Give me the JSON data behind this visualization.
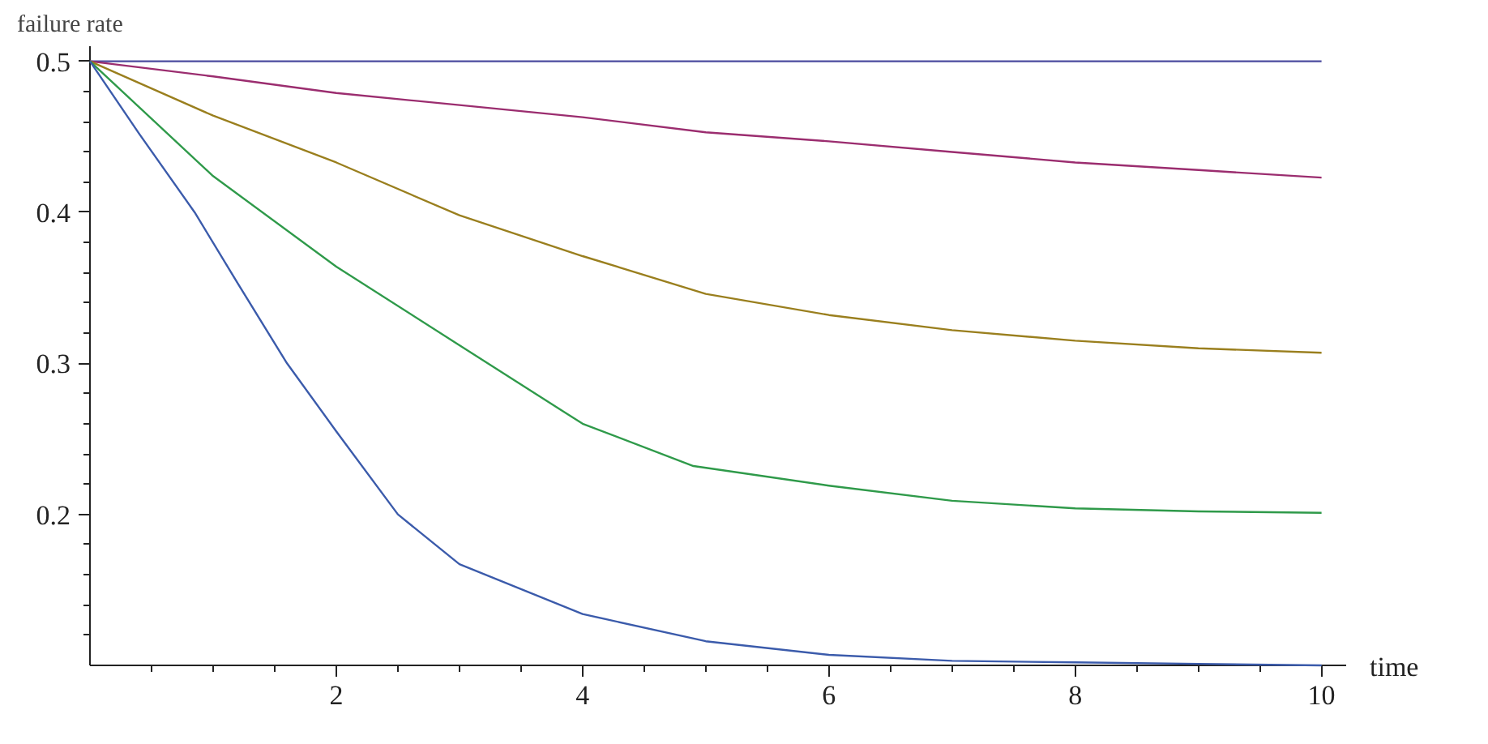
{
  "chart_data": {
    "type": "line",
    "xlabel": "time",
    "ylabel": "failure rate",
    "xlim": [
      0,
      10.2
    ],
    "ylim": [
      0.1,
      0.51
    ],
    "xticks": [
      {
        "value": 0.5,
        "label": null
      },
      {
        "value": 1,
        "label": null
      },
      {
        "value": 1.5,
        "label": null
      },
      2,
      {
        "value": 2.5,
        "label": null
      },
      {
        "value": 3,
        "label": null
      },
      {
        "value": 3.5,
        "label": null
      },
      4,
      {
        "value": 4.5,
        "label": null
      },
      {
        "value": 5,
        "label": null
      },
      {
        "value": 5.5,
        "label": null
      },
      6,
      {
        "value": 6.5,
        "label": null
      },
      {
        "value": 7,
        "label": null
      },
      {
        "value": 7.5,
        "label": null
      },
      8,
      {
        "value": 8.5,
        "label": null
      },
      {
        "value": 9,
        "label": null
      },
      {
        "value": 9.5,
        "label": null
      },
      10
    ],
    "yticks": [
      {
        "value": 0.12,
        "label": null
      },
      {
        "value": 0.14,
        "label": null
      },
      {
        "value": 0.16,
        "label": null
      },
      {
        "value": 0.18,
        "label": null
      },
      0.2,
      {
        "value": 0.22,
        "label": null
      },
      {
        "value": 0.24,
        "label": null
      },
      {
        "value": 0.26,
        "label": null
      },
      {
        "value": 0.28,
        "label": null
      },
      0.3,
      {
        "value": 0.32,
        "label": null
      },
      {
        "value": 0.34,
        "label": null
      },
      {
        "value": 0.36,
        "label": null
      },
      {
        "value": 0.38,
        "label": null
      },
      0.4,
      {
        "value": 0.42,
        "label": null
      },
      {
        "value": 0.44,
        "label": null
      },
      {
        "value": 0.46,
        "label": null
      },
      {
        "value": 0.48,
        "label": null
      },
      0.5
    ],
    "grid": false,
    "marker": "none",
    "line_style": "solid",
    "series": [
      {
        "color": "#4b4b9e",
        "x": [
          0,
          10
        ],
        "values": [
          0.5,
          0.5
        ]
      },
      {
        "color": "#9b2d6f",
        "x": [
          0,
          1,
          2,
          3,
          4,
          5,
          6,
          7,
          8,
          9,
          10
        ],
        "values": [
          0.5,
          0.49,
          0.479,
          0.471,
          0.463,
          0.453,
          0.447,
          0.44,
          0.433,
          0.428,
          0.423
        ]
      },
      {
        "color": "#9a7f1e",
        "x": [
          0,
          1,
          2,
          3,
          4,
          5,
          6,
          7,
          8,
          9,
          10
        ],
        "values": [
          0.5,
          0.464,
          0.433,
          0.398,
          0.371,
          0.346,
          0.332,
          0.322,
          0.315,
          0.31,
          0.307
        ]
      },
      {
        "color": "#2f9a4a",
        "x": [
          0,
          1,
          2,
          3,
          4,
          4.9,
          6,
          7,
          8,
          9,
          10
        ],
        "values": [
          0.5,
          0.424,
          0.364,
          0.312,
          0.26,
          0.232,
          0.219,
          0.209,
          0.204,
          0.202,
          0.201
        ]
      },
      {
        "color": "#3b5bab",
        "x": [
          0,
          0.4,
          0.85,
          1.2,
          1.6,
          2,
          2.5,
          3,
          4,
          5,
          6,
          7,
          8,
          9,
          10
        ],
        "values": [
          0.5,
          0.452,
          0.4,
          0.353,
          0.3,
          0.255,
          0.2,
          0.167,
          0.134,
          0.116,
          0.107,
          0.103,
          0.102,
          0.101,
          0.1
        ]
      }
    ]
  }
}
